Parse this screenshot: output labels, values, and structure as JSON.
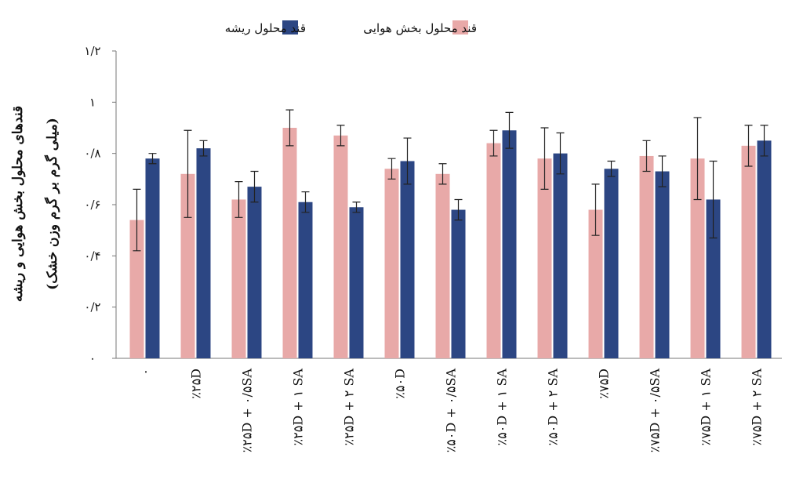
{
  "chart_data": {
    "type": "bar",
    "ylabel": [
      "قندهای محلول بخش هوایی و ریشه",
      "(میلی گرم بر گرم وزن خشک)"
    ],
    "categories": [
      "۰",
      "٪۲۵D",
      "٪۲۵D + ۰/۵SA",
      "٪۲۵D + ۱ SA",
      "٪۲۵D + ۲ SA",
      "٪۵۰D",
      "٪۵۰D + ۰/۵SA",
      "٪۵۰D + ۱ SA",
      "٪۵۰D + ۲ SA",
      "٪۷۵D",
      "٪۷۵D + ۰/۵SA",
      "٪۷۵D + ۱ SA",
      "٪۷۵D + ۲ SA"
    ],
    "series": [
      {
        "name": "قند محلول بخش هوایی",
        "color": "#e8a9a8",
        "values": [
          0.54,
          0.72,
          0.62,
          0.9,
          0.87,
          0.74,
          0.72,
          0.84,
          0.78,
          0.58,
          0.79,
          0.78,
          0.83
        ],
        "errors": [
          0.12,
          0.17,
          0.07,
          0.07,
          0.04,
          0.04,
          0.04,
          0.05,
          0.12,
          0.1,
          0.06,
          0.16,
          0.08
        ]
      },
      {
        "name": "قند محلول ریشه",
        "color": "#2c4683",
        "values": [
          0.78,
          0.82,
          0.67,
          0.61,
          0.59,
          0.77,
          0.58,
          0.89,
          0.8,
          0.74,
          0.73,
          0.62,
          0.85
        ],
        "errors": [
          0.02,
          0.03,
          0.06,
          0.04,
          0.02,
          0.09,
          0.04,
          0.07,
          0.08,
          0.03,
          0.06,
          0.15,
          0.06
        ]
      }
    ],
    "ylim": [
      0,
      1.2
    ],
    "yticks": [
      {
        "value": 0,
        "label": "۰"
      },
      {
        "value": 0.2,
        "label": "۰/۲"
      },
      {
        "value": 0.4,
        "label": "۰/۴"
      },
      {
        "value": 0.6,
        "label": "۰/۶"
      },
      {
        "value": 0.8,
        "label": "۰/۸"
      },
      {
        "value": 1,
        "label": "۱"
      },
      {
        "value": 1.2,
        "label": "۱/۲"
      }
    ]
  }
}
